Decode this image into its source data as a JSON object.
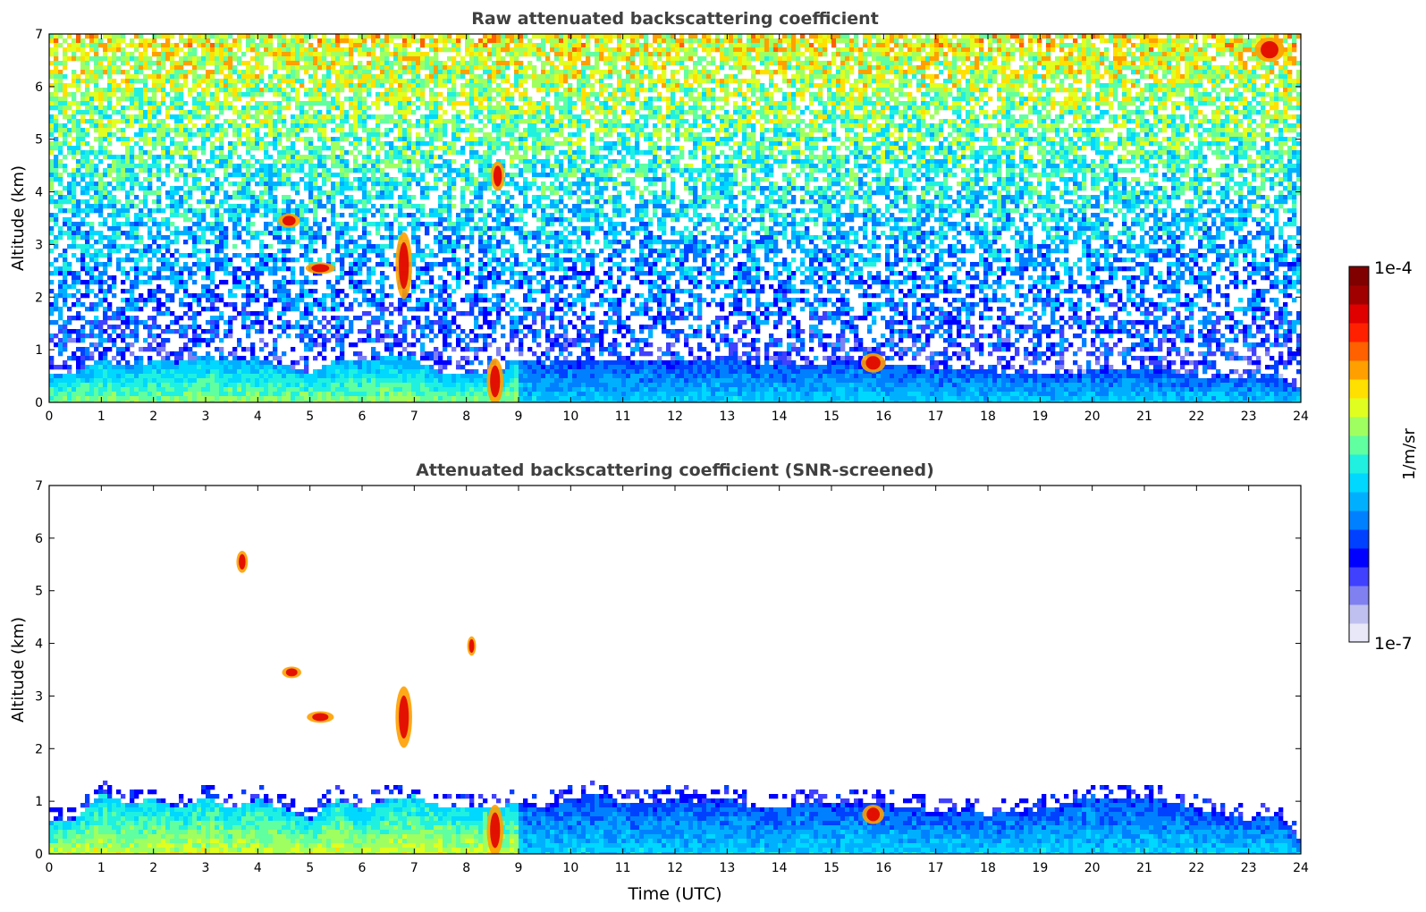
{
  "chart_data": [
    {
      "type": "heatmap",
      "title": "Raw attenuated backscattering coefficient",
      "xlabel": "",
      "ylabel": "Altitude (km)",
      "x_ticks": [
        "0",
        "1",
        "2",
        "3",
        "4",
        "5",
        "6",
        "7",
        "8",
        "9",
        "10",
        "11",
        "12",
        "13",
        "14",
        "15",
        "16",
        "17",
        "18",
        "19",
        "20",
        "21",
        "22",
        "23",
        "24"
      ],
      "y_ticks": [
        "0",
        "1",
        "2",
        "3",
        "4",
        "5",
        "6",
        "7"
      ],
      "xlim": [
        0,
        24
      ],
      "ylim": [
        0,
        7
      ],
      "screened": false,
      "boundary_layer_km": [
        0.55,
        0.6,
        0.9,
        0.7,
        0.85,
        0.8,
        0.95,
        0.8,
        0.9,
        0.75,
        0.6,
        0.85,
        0.8,
        0.9,
        0.9,
        0.6,
        0.6,
        0.6,
        0.9,
        0.8,
        0.85,
        0.85,
        0.85,
        0.8,
        0.85,
        0.8,
        0.9,
        0.8,
        0.8,
        0.8,
        0.8,
        0.85,
        0.8,
        0.75,
        0.7,
        0.65,
        0.65,
        0.6,
        0.6,
        0.6,
        0.65,
        0.7,
        0.65,
        0.65,
        0.55,
        0.55,
        0.5,
        0.6,
        0.3
      ],
      "aerosol_layers": [
        {
          "t": 4.6,
          "z": 3.45,
          "dt": 0.35,
          "dz": 0.2
        },
        {
          "t": 5.2,
          "z": 2.55,
          "dt": 0.5,
          "dz": 0.15
        },
        {
          "t": 6.8,
          "z": 2.6,
          "dt": 0.25,
          "dz": 1.2
        },
        {
          "t": 8.6,
          "z": 4.3,
          "dt": 0.2,
          "dz": 0.5
        },
        {
          "t": 8.55,
          "z": 0.4,
          "dt": 0.25,
          "dz": 0.8
        },
        {
          "t": 15.8,
          "z": 0.75,
          "dt": 0.4,
          "dz": 0.3
        },
        {
          "t": 23.4,
          "z": 6.7,
          "dt": 0.5,
          "dz": 0.4
        }
      ]
    },
    {
      "type": "heatmap",
      "title": "Attenuated backscattering coefficient (SNR-screened)",
      "xlabel": "Time (UTC)",
      "ylabel": "Altitude (km)",
      "x_ticks": [
        "0",
        "1",
        "2",
        "3",
        "4",
        "5",
        "6",
        "7",
        "8",
        "9",
        "10",
        "11",
        "12",
        "13",
        "14",
        "15",
        "16",
        "17",
        "18",
        "19",
        "20",
        "21",
        "22",
        "23",
        "24"
      ],
      "y_ticks": [
        "0",
        "1",
        "2",
        "3",
        "4",
        "5",
        "6",
        "7"
      ],
      "xlim": [
        0,
        24
      ],
      "ylim": [
        0,
        7
      ],
      "screened": true,
      "boundary_layer_km": [
        0.65,
        0.7,
        1.2,
        1.0,
        1.1,
        0.9,
        1.15,
        0.9,
        1.1,
        0.9,
        0.7,
        1.1,
        0.9,
        1.1,
        1.15,
        0.95,
        0.95,
        0.95,
        1.0,
        0.95,
        1.1,
        1.2,
        1.0,
        1.0,
        1.1,
        1.05,
        1.1,
        0.95,
        0.95,
        1.0,
        1.0,
        1.05,
        1.0,
        0.95,
        0.85,
        0.85,
        0.8,
        0.85,
        0.9,
        1.0,
        1.15,
        1.1,
        1.1,
        1.05,
        0.9,
        0.8,
        0.7,
        0.8,
        0.3
      ],
      "aerosol_layers": [
        {
          "t": 3.7,
          "z": 5.55,
          "dt": 0.15,
          "dz": 0.35
        },
        {
          "t": 4.65,
          "z": 3.45,
          "dt": 0.3,
          "dz": 0.15
        },
        {
          "t": 5.2,
          "z": 2.6,
          "dt": 0.45,
          "dz": 0.15
        },
        {
          "t": 6.8,
          "z": 2.6,
          "dt": 0.25,
          "dz": 1.1
        },
        {
          "t": 8.1,
          "z": 3.95,
          "dt": 0.1,
          "dz": 0.3
        },
        {
          "t": 8.55,
          "z": 0.45,
          "dt": 0.25,
          "dz": 0.9
        },
        {
          "t": 15.8,
          "z": 0.75,
          "dt": 0.35,
          "dz": 0.3
        }
      ]
    }
  ],
  "colorbar": {
    "max_label": "1e-4",
    "min_label": "1e-7",
    "unit_label": "1/m/sr",
    "colors": [
      "#e8e8f8",
      "#c0c0f0",
      "#8080f0",
      "#4040ff",
      "#0000ff",
      "#0040ff",
      "#0080ff",
      "#00b0ff",
      "#00d8ff",
      "#20f0e0",
      "#60ffa0",
      "#a0ff60",
      "#e0ff20",
      "#ffe000",
      "#ffa000",
      "#ff6000",
      "#ff2000",
      "#e00000",
      "#a00000",
      "#800000"
    ]
  }
}
